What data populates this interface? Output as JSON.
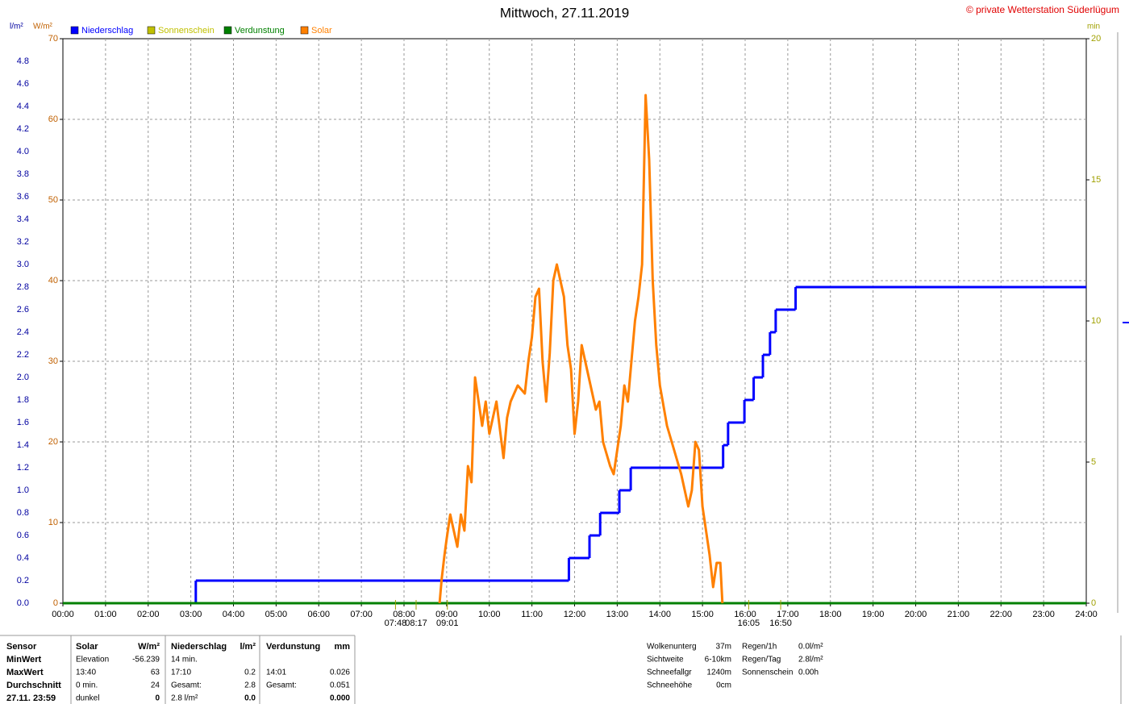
{
  "chart_data": {
    "type": "line",
    "title": "Mittwoch, 27.11.2019",
    "copyright": "© private Wetterstation Süderlügum",
    "y_label": "l/m²",
    "y2_label": "W/m²",
    "y3_label": "min",
    "xlim": [
      "00:00",
      "24:00"
    ],
    "xticks": [
      "00:00",
      "01:00",
      "02:00",
      "03:00",
      "04:00",
      "05:00",
      "06:00",
      "07:00",
      "08:00",
      "09:00",
      "10:00",
      "11:00",
      "12:00",
      "13:00",
      "14:00",
      "15:00",
      "16:00",
      "17:00",
      "18:00",
      "19:00",
      "20:00",
      "21:00",
      "22:00",
      "23:00",
      "24:00"
    ],
    "ylim": [
      0,
      5
    ],
    "yticks": [
      {
        "value": 0,
        "label": "0.0"
      },
      0.2,
      0.4,
      0.6,
      0.8,
      {
        "value": 1,
        "label": "1.0"
      },
      1.2,
      1.4,
      1.6,
      1.8,
      {
        "value": 2,
        "label": "2.0"
      },
      2.2,
      2.4,
      2.6,
      2.8,
      {
        "value": 3,
        "label": "3.0"
      },
      3.2,
      3.4,
      3.6,
      3.8,
      {
        "value": 4,
        "label": "4.0"
      },
      4.2,
      4.4,
      4.6,
      4.8
    ],
    "y2lim": [
      0,
      70
    ],
    "y2ticks": [
      0,
      10,
      20,
      30,
      40,
      50,
      60,
      70
    ],
    "y3lim": [
      0,
      20
    ],
    "y3ticks": [
      0,
      5,
      10,
      15,
      20
    ],
    "grid": true,
    "series": [
      {
        "name": "Niederschlag",
        "color": "#0000ff",
        "axis": "y",
        "step": true,
        "x": [
          "00:00",
          "03:07",
          "11:52",
          "12:21",
          "12:36",
          "13:03",
          "13:19",
          "15:29",
          "15:36",
          "15:59",
          "16:12",
          "16:25",
          "16:35",
          "16:43",
          "17:11"
        ],
        "values": [
          0,
          0.2,
          0.4,
          0.6,
          0.8,
          1.0,
          1.2,
          1.4,
          1.6,
          1.8,
          2.0,
          2.2,
          2.4,
          2.6,
          2.8
        ]
      },
      {
        "name": "Sonnenschein",
        "color": "#c0c000",
        "axis": "y3"
      },
      {
        "name": "Verdunstung",
        "color": "#008000",
        "axis": "y",
        "x": [
          "00:00",
          "24:00"
        ],
        "values": [
          0,
          0
        ]
      },
      {
        "name": "Solar",
        "color": "#ff8000",
        "axis": "y2",
        "x": [
          "08:50",
          "08:53",
          "08:57",
          "09:00",
          "09:05",
          "09:10",
          "09:15",
          "09:20",
          "09:25",
          "09:30",
          "09:35",
          "09:40",
          "09:45",
          "09:50",
          "09:55",
          "10:00",
          "10:10",
          "10:20",
          "10:25",
          "10:30",
          "10:40",
          "10:50",
          "10:55",
          "11:00",
          "11:05",
          "11:10",
          "11:15",
          "11:20",
          "11:25",
          "11:30",
          "11:35",
          "11:40",
          "11:45",
          "11:50",
          "11:55",
          "12:00",
          "12:05",
          "12:10",
          "12:15",
          "12:20",
          "12:30",
          "12:35",
          "12:40",
          "12:50",
          "12:55",
          "13:00",
          "13:05",
          "13:10",
          "13:15",
          "13:20",
          "13:25",
          "13:30",
          "13:35",
          "13:40",
          "13:45",
          "13:50",
          "13:55",
          "14:00",
          "14:10",
          "14:20",
          "14:30",
          "14:35",
          "14:40",
          "14:45",
          "14:50",
          "14:55",
          "15:00",
          "15:05",
          "15:10",
          "15:15",
          "15:20",
          "15:25",
          "15:28"
        ],
        "values": [
          0,
          3,
          6,
          8,
          11,
          9,
          7,
          11,
          9,
          17,
          15,
          28,
          25,
          22,
          25,
          21,
          25,
          18,
          23,
          25,
          27,
          26,
          30,
          33,
          38,
          39,
          30,
          25,
          31,
          40,
          42,
          40,
          38,
          32,
          29,
          21,
          25,
          32,
          30,
          28,
          24,
          25,
          20,
          17,
          16,
          19,
          22,
          27,
          25,
          30,
          35,
          38,
          42,
          63,
          55,
          40,
          32,
          27,
          22,
          19,
          16,
          14,
          12,
          14,
          20,
          19,
          12,
          9,
          6,
          2,
          5,
          5,
          0
        ]
      }
    ],
    "annotations": [
      {
        "x": "07:48",
        "label": "07:48"
      },
      {
        "x": "08:17",
        "label": "08:17"
      },
      {
        "x": "09:01",
        "label": "09:01"
      },
      {
        "x": "16:05",
        "label": "16:05"
      },
      {
        "x": "16:50",
        "label": "16:50"
      }
    ]
  },
  "stats_table": {
    "header": [
      "Sensor",
      "Solar",
      "W/m²",
      "Niederschlag",
      "l/m²",
      "Verdunstung",
      "mm"
    ],
    "rows": [
      [
        "MinWert",
        "Elevation",
        "-56.239",
        "14 min.",
        null,
        null,
        null
      ],
      [
        "MaxWert",
        "13:40",
        "63",
        "17:10",
        "0.2",
        "14:01",
        "0.026"
      ],
      [
        "Durchschnitt",
        "0 min.",
        "24",
        "Gesamt:",
        "2.8",
        "Gesamt:",
        "0.051"
      ],
      [
        "27.11. 23:59",
        "dunkel",
        "0",
        "2.8 l/m²",
        "0.0",
        null,
        "0.000"
      ]
    ]
  },
  "info": {
    "left": [
      [
        "Wolkenunterg",
        "37m"
      ],
      [
        "Sichtweite",
        "6-10km"
      ],
      [
        "Schneefallgr",
        "1240m"
      ],
      [
        "Schneehöhe",
        "0cm"
      ]
    ],
    "right": [
      [
        "Regen/1h",
        "0.0l/m²"
      ],
      [
        "Regen/Tag",
        "2.8l/m²"
      ],
      [
        "Sonnenschein",
        "0.00h"
      ]
    ]
  }
}
